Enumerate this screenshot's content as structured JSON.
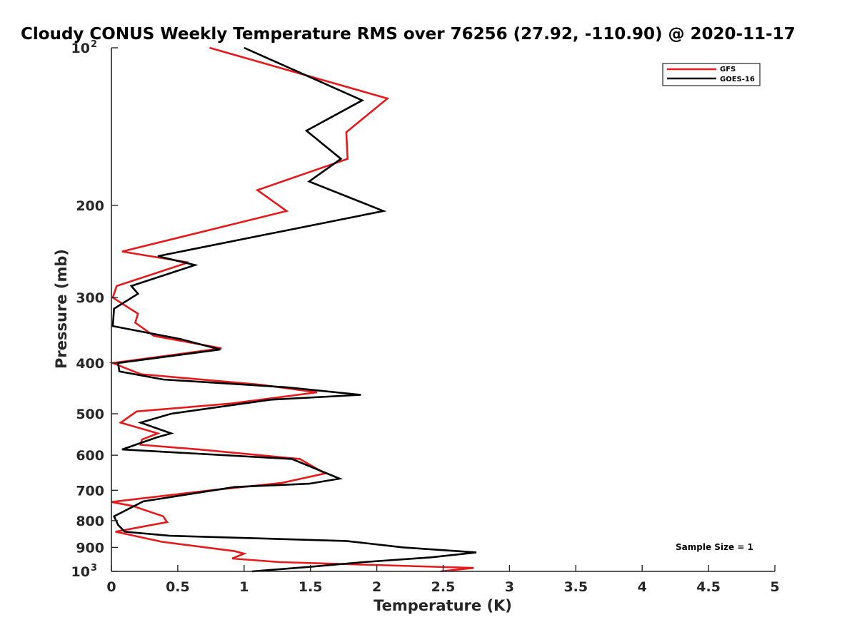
{
  "chart_data": {
    "type": "line",
    "title": "Cloudy CONUS Weekly Temperature RMS over 76256 (27.92, -110.90) @ 2020-11-17",
    "xlabel": "Temperature (K)",
    "ylabel": "Pressure (mb)",
    "xlim": [
      0,
      5
    ],
    "ylim": [
      1000,
      100
    ],
    "yscale": "log",
    "x_ticks": [
      {
        "value": 0,
        "label": "0"
      },
      {
        "value": 0.5,
        "label": "0.5"
      },
      {
        "value": 1,
        "label": "1"
      },
      {
        "value": 1.5,
        "label": "1.5"
      },
      {
        "value": 2,
        "label": "2"
      },
      {
        "value": 2.5,
        "label": "2.5"
      },
      {
        "value": 3,
        "label": "3"
      },
      {
        "value": 3.5,
        "label": "3.5"
      },
      {
        "value": 4,
        "label": "4"
      },
      {
        "value": 4.5,
        "label": "4.5"
      },
      {
        "value": 5,
        "label": "5"
      }
    ],
    "y_ticks": [
      {
        "value": 100,
        "label": "10",
        "exp": "2"
      },
      {
        "value": 200,
        "label": "200"
      },
      {
        "value": 300,
        "label": "300"
      },
      {
        "value": 400,
        "label": "400"
      },
      {
        "value": 500,
        "label": "500"
      },
      {
        "value": 600,
        "label": "600"
      },
      {
        "value": 700,
        "label": "700"
      },
      {
        "value": 800,
        "label": "800"
      },
      {
        "value": 900,
        "label": "900"
      },
      {
        "value": 1000,
        "label": "10",
        "exp": "3"
      }
    ],
    "legend_position": "top-right",
    "annotation": "Sample Size = 1",
    "series": [
      {
        "name": "GFS",
        "color": "#e41a1c",
        "points": [
          [
            0.74,
            100
          ],
          [
            2.08,
            125
          ],
          [
            1.77,
            145
          ],
          [
            1.78,
            163
          ],
          [
            1.1,
            187
          ],
          [
            1.32,
            205
          ],
          [
            0.08,
            245
          ],
          [
            0.58,
            257
          ],
          [
            0.04,
            285
          ],
          [
            0.01,
            300
          ],
          [
            0.2,
            322
          ],
          [
            0.18,
            335
          ],
          [
            0.32,
            355
          ],
          [
            0.83,
            375
          ],
          [
            0.01,
            400
          ],
          [
            0.22,
            420
          ],
          [
            1.12,
            440
          ],
          [
            1.55,
            455
          ],
          [
            0.9,
            478
          ],
          [
            0.19,
            495
          ],
          [
            0.07,
            520
          ],
          [
            0.35,
            545
          ],
          [
            0.23,
            560
          ],
          [
            0.22,
            573
          ],
          [
            0.66,
            585
          ],
          [
            1.42,
            610
          ],
          [
            1.61,
            650
          ],
          [
            1.28,
            678
          ],
          [
            0.75,
            700
          ],
          [
            0.0,
            737
          ],
          [
            0.16,
            750
          ],
          [
            0.39,
            785
          ],
          [
            0.42,
            805
          ],
          [
            0.03,
            840
          ],
          [
            0.38,
            878
          ],
          [
            0.93,
            915
          ],
          [
            1.0,
            925
          ],
          [
            0.91,
            945
          ],
          [
            1.27,
            960
          ],
          [
            2.73,
            985
          ],
          [
            2.48,
            1000
          ]
        ]
      },
      {
        "name": "GOES-16",
        "color": "#000000",
        "points": [
          [
            1.0,
            100
          ],
          [
            1.89,
            126
          ],
          [
            1.47,
            144
          ],
          [
            1.73,
            163
          ],
          [
            1.49,
            180
          ],
          [
            2.05,
            205
          ],
          [
            0.35,
            250
          ],
          [
            0.63,
            260
          ],
          [
            0.15,
            285
          ],
          [
            0.2,
            295
          ],
          [
            0.02,
            315
          ],
          [
            0.01,
            340
          ],
          [
            0.52,
            360
          ],
          [
            0.82,
            377
          ],
          [
            0.05,
            400
          ],
          [
            0.06,
            415
          ],
          [
            0.39,
            430
          ],
          [
            1.32,
            445
          ],
          [
            1.88,
            460
          ],
          [
            1.2,
            470
          ],
          [
            0.45,
            500
          ],
          [
            0.22,
            520
          ],
          [
            0.45,
            545
          ],
          [
            0.34,
            555
          ],
          [
            0.08,
            585
          ],
          [
            1.36,
            610
          ],
          [
            1.72,
            665
          ],
          [
            1.49,
            680
          ],
          [
            0.93,
            690
          ],
          [
            0.24,
            735
          ],
          [
            0.02,
            785
          ],
          [
            0.05,
            815
          ],
          [
            0.1,
            840
          ],
          [
            0.44,
            855
          ],
          [
            1.77,
            875
          ],
          [
            2.2,
            900
          ],
          [
            2.75,
            920
          ],
          [
            2.41,
            940
          ],
          [
            1.9,
            960
          ],
          [
            1.5,
            980
          ],
          [
            1.06,
            1000
          ]
        ]
      }
    ]
  }
}
